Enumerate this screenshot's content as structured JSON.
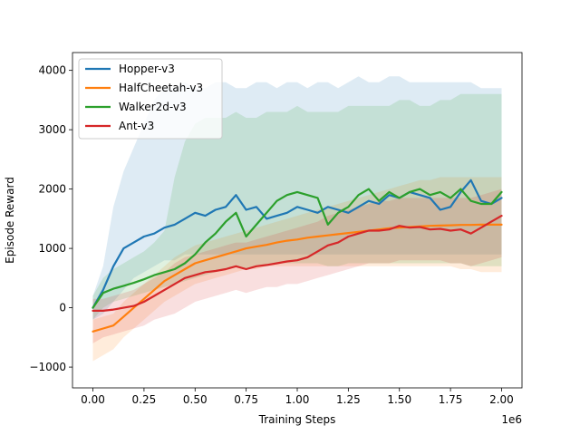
{
  "chart_data": {
    "type": "line",
    "title": "",
    "xlabel": "Training Steps",
    "ylabel": "Episode Reward",
    "x_offset_label": "1e6",
    "xlim": [
      -0.1,
      2.1
    ],
    "ylim": [
      -1350,
      4300
    ],
    "xticks": [
      0,
      0.25,
      0.5,
      0.75,
      1.0,
      1.25,
      1.5,
      1.75,
      2.0
    ],
    "xtick_labels": [
      "0.00",
      "0.25",
      "0.50",
      "0.75",
      "1.00",
      "1.25",
      "1.50",
      "1.75",
      "2.00"
    ],
    "yticks": [
      -1000,
      0,
      1000,
      2000,
      3000,
      4000
    ],
    "ytick_labels": [
      "−1000",
      "0",
      "1000",
      "2000",
      "3000",
      "4000"
    ],
    "grid": false,
    "legend_position": "top-left",
    "x": [
      0,
      0.05,
      0.1,
      0.15,
      0.2,
      0.25,
      0.3,
      0.35,
      0.4,
      0.45,
      0.5,
      0.55,
      0.6,
      0.65,
      0.7,
      0.75,
      0.8,
      0.85,
      0.9,
      0.95,
      1.0,
      1.05,
      1.1,
      1.15,
      1.2,
      1.25,
      1.3,
      1.35,
      1.4,
      1.45,
      1.5,
      1.55,
      1.6,
      1.65,
      1.7,
      1.75,
      1.8,
      1.85,
      1.9,
      1.95,
      2.0
    ],
    "series": [
      {
        "name": "Hopper-v3",
        "color": "#1f77b4",
        "values": [
          0,
          300,
          700,
          1000,
          1100,
          1200,
          1250,
          1350,
          1400,
          1500,
          1600,
          1550,
          1650,
          1700,
          1900,
          1650,
          1700,
          1500,
          1550,
          1600,
          1700,
          1650,
          1600,
          1700,
          1650,
          1600,
          1700,
          1800,
          1750,
          1900,
          1850,
          1950,
          1900,
          1850,
          1650,
          1700,
          1950,
          2150,
          1800,
          1750,
          1850
        ],
        "upper": [
          200,
          700,
          1700,
          2300,
          2700,
          3100,
          3500,
          3700,
          3700,
          3800,
          3700,
          3700,
          3800,
          3800,
          3700,
          3700,
          3800,
          3800,
          3700,
          3800,
          3800,
          3700,
          3800,
          3800,
          3700,
          3800,
          3900,
          3800,
          3800,
          3900,
          3900,
          3800,
          3800,
          3800,
          3800,
          3800,
          3800,
          3800,
          3700,
          3700,
          3700
        ],
        "lower": [
          -200,
          -100,
          100,
          300,
          500,
          600,
          700,
          800,
          800,
          900,
          900,
          900,
          900,
          900,
          900,
          900,
          900,
          900,
          900,
          900,
          900,
          900,
          900,
          900,
          900,
          900,
          900,
          900,
          900,
          900,
          900,
          900,
          900,
          900,
          900,
          900,
          900,
          900,
          900,
          900,
          900
        ]
      },
      {
        "name": "HalfCheetah-v3",
        "color": "#ff7f0e",
        "values": [
          -400,
          -350,
          -300,
          -150,
          0,
          150,
          300,
          450,
          550,
          650,
          750,
          800,
          850,
          900,
          950,
          1000,
          1030,
          1060,
          1100,
          1130,
          1150,
          1180,
          1200,
          1220,
          1240,
          1260,
          1280,
          1300,
          1320,
          1340,
          1350,
          1360,
          1370,
          1380,
          1385,
          1390,
          1395,
          1395,
          1400,
          1400,
          1400
        ],
        "upper": [
          -200,
          -150,
          -100,
          100,
          250,
          400,
          550,
          700,
          850,
          950,
          1050,
          1100,
          1150,
          1200,
          1250,
          1300,
          1350,
          1400,
          1450,
          1500,
          1550,
          1600,
          1650,
          1700,
          1750,
          1800,
          1850,
          1900,
          1950,
          2000,
          2050,
          2100,
          2150,
          2150,
          2200,
          2200,
          2200,
          2200,
          2200,
          2200,
          2200
        ],
        "lower": [
          -900,
          -800,
          -700,
          -500,
          -350,
          -200,
          -50,
          100,
          200,
          300,
          400,
          450,
          500,
          550,
          600,
          650,
          650,
          700,
          700,
          700,
          700,
          700,
          700,
          700,
          700,
          700,
          700,
          700,
          700,
          700,
          700,
          700,
          700,
          700,
          700,
          700,
          650,
          650,
          600,
          600,
          600
        ]
      },
      {
        "name": "Walker2d-v3",
        "color": "#2ca02c",
        "values": [
          0,
          250,
          320,
          370,
          420,
          480,
          550,
          600,
          650,
          750,
          900,
          1100,
          1250,
          1450,
          1600,
          1200,
          1400,
          1600,
          1800,
          1900,
          1950,
          1900,
          1850,
          1400,
          1600,
          1700,
          1900,
          2000,
          1800,
          1950,
          1850,
          1950,
          2000,
          1900,
          1950,
          1850,
          2000,
          1800,
          1750,
          1750,
          1950
        ],
        "upper": [
          200,
          500,
          650,
          750,
          850,
          950,
          1100,
          1300,
          2200,
          2800,
          3100,
          3200,
          3200,
          3200,
          3300,
          3200,
          3200,
          3300,
          3300,
          3300,
          3400,
          3300,
          3300,
          3300,
          3300,
          3400,
          3400,
          3400,
          3400,
          3400,
          3500,
          3500,
          3400,
          3400,
          3500,
          3500,
          3600,
          3600,
          3600,
          3600,
          3600
        ],
        "lower": [
          -200,
          0,
          100,
          150,
          200,
          250,
          300,
          350,
          400,
          450,
          500,
          550,
          600,
          650,
          700,
          650,
          700,
          700,
          750,
          750,
          750,
          750,
          750,
          700,
          700,
          750,
          750,
          750,
          750,
          750,
          750,
          750,
          750,
          750,
          750,
          750,
          750,
          700,
          700,
          700,
          700
        ]
      },
      {
        "name": "Ant-v3",
        "color": "#d62728",
        "values": [
          -50,
          -50,
          -30,
          0,
          30,
          100,
          200,
          300,
          400,
          500,
          550,
          600,
          620,
          650,
          700,
          650,
          700,
          720,
          750,
          780,
          800,
          850,
          950,
          1050,
          1100,
          1200,
          1250,
          1300,
          1300,
          1320,
          1380,
          1350,
          1360,
          1320,
          1330,
          1300,
          1320,
          1250,
          1350,
          1450,
          1550
        ],
        "upper": [
          150,
          150,
          200,
          250,
          300,
          400,
          500,
          600,
          750,
          850,
          900,
          950,
          1000,
          1050,
          1100,
          1100,
          1150,
          1200,
          1250,
          1300,
          1350,
          1400,
          1450,
          1550,
          1600,
          1650,
          1700,
          1750,
          1800,
          1800,
          1850,
          1850,
          1850,
          1850,
          1850,
          1850,
          1850,
          1850,
          1900,
          1950,
          2000
        ],
        "lower": [
          -600,
          -500,
          -450,
          -400,
          -350,
          -300,
          -200,
          -150,
          -100,
          0,
          100,
          150,
          200,
          250,
          300,
          250,
          300,
          350,
          350,
          400,
          400,
          450,
          500,
          550,
          600,
          650,
          700,
          750,
          750,
          750,
          800,
          800,
          800,
          800,
          800,
          750,
          750,
          700,
          750,
          800,
          850
        ]
      }
    ]
  }
}
